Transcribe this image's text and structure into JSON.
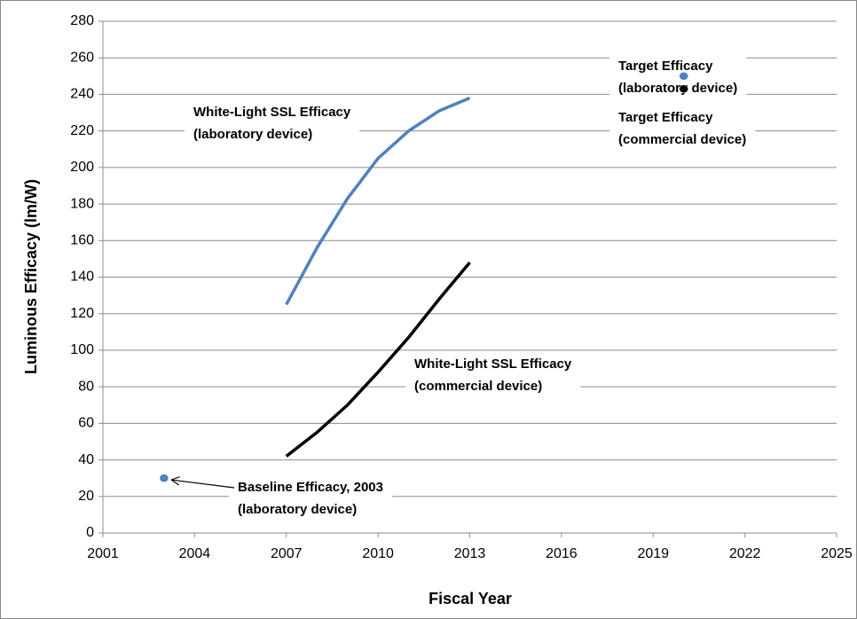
{
  "chart_data": {
    "type": "line",
    "xlabel": "Fiscal Year",
    "ylabel": "Luminous Efficacy (lm/W)",
    "xlim": [
      2001,
      2025
    ],
    "xticks": [
      2001,
      2004,
      2007,
      2010,
      2013,
      2016,
      2019,
      2022,
      2025
    ],
    "ylim": [
      0,
      280
    ],
    "yticks": [
      0,
      20,
      40,
      60,
      80,
      100,
      120,
      140,
      160,
      180,
      200,
      220,
      240,
      260,
      280
    ],
    "grid": true,
    "series": [
      {
        "style": "line",
        "color": "#4f81bd",
        "x": [
          2007,
          2008,
          2009,
          2010,
          2011,
          2012,
          2013
        ],
        "values": [
          125,
          156,
          183,
          205,
          220,
          231,
          238
        ]
      },
      {
        "style": "line",
        "color": "#000000",
        "x": [
          2007,
          2008,
          2009,
          2010,
          2011,
          2012,
          2013
        ],
        "values": [
          42,
          55,
          70,
          88,
          107,
          128,
          148
        ]
      },
      {
        "style": "marker",
        "color": "#4f81bd",
        "x": [
          2003
        ],
        "values": [
          30
        ]
      },
      {
        "style": "marker",
        "color": "#4f81bd",
        "x": [
          2020
        ],
        "values": [
          250
        ]
      },
      {
        "style": "marker",
        "color": "#000000",
        "x": [
          2020
        ],
        "values": [
          243
        ]
      }
    ],
    "annotations": [
      [
        "White-Light SSL Efficacy",
        "(laboratory device)"
      ],
      [
        "White-Light SSL Efficacy",
        "(commercial device)"
      ],
      [
        "Target Efficacy",
        "(laboratory device)"
      ],
      [
        "Target Efficacy",
        "(commercial device)"
      ],
      [
        "Baseline Efficacy, 2003",
        "(laboratory device)"
      ]
    ]
  }
}
